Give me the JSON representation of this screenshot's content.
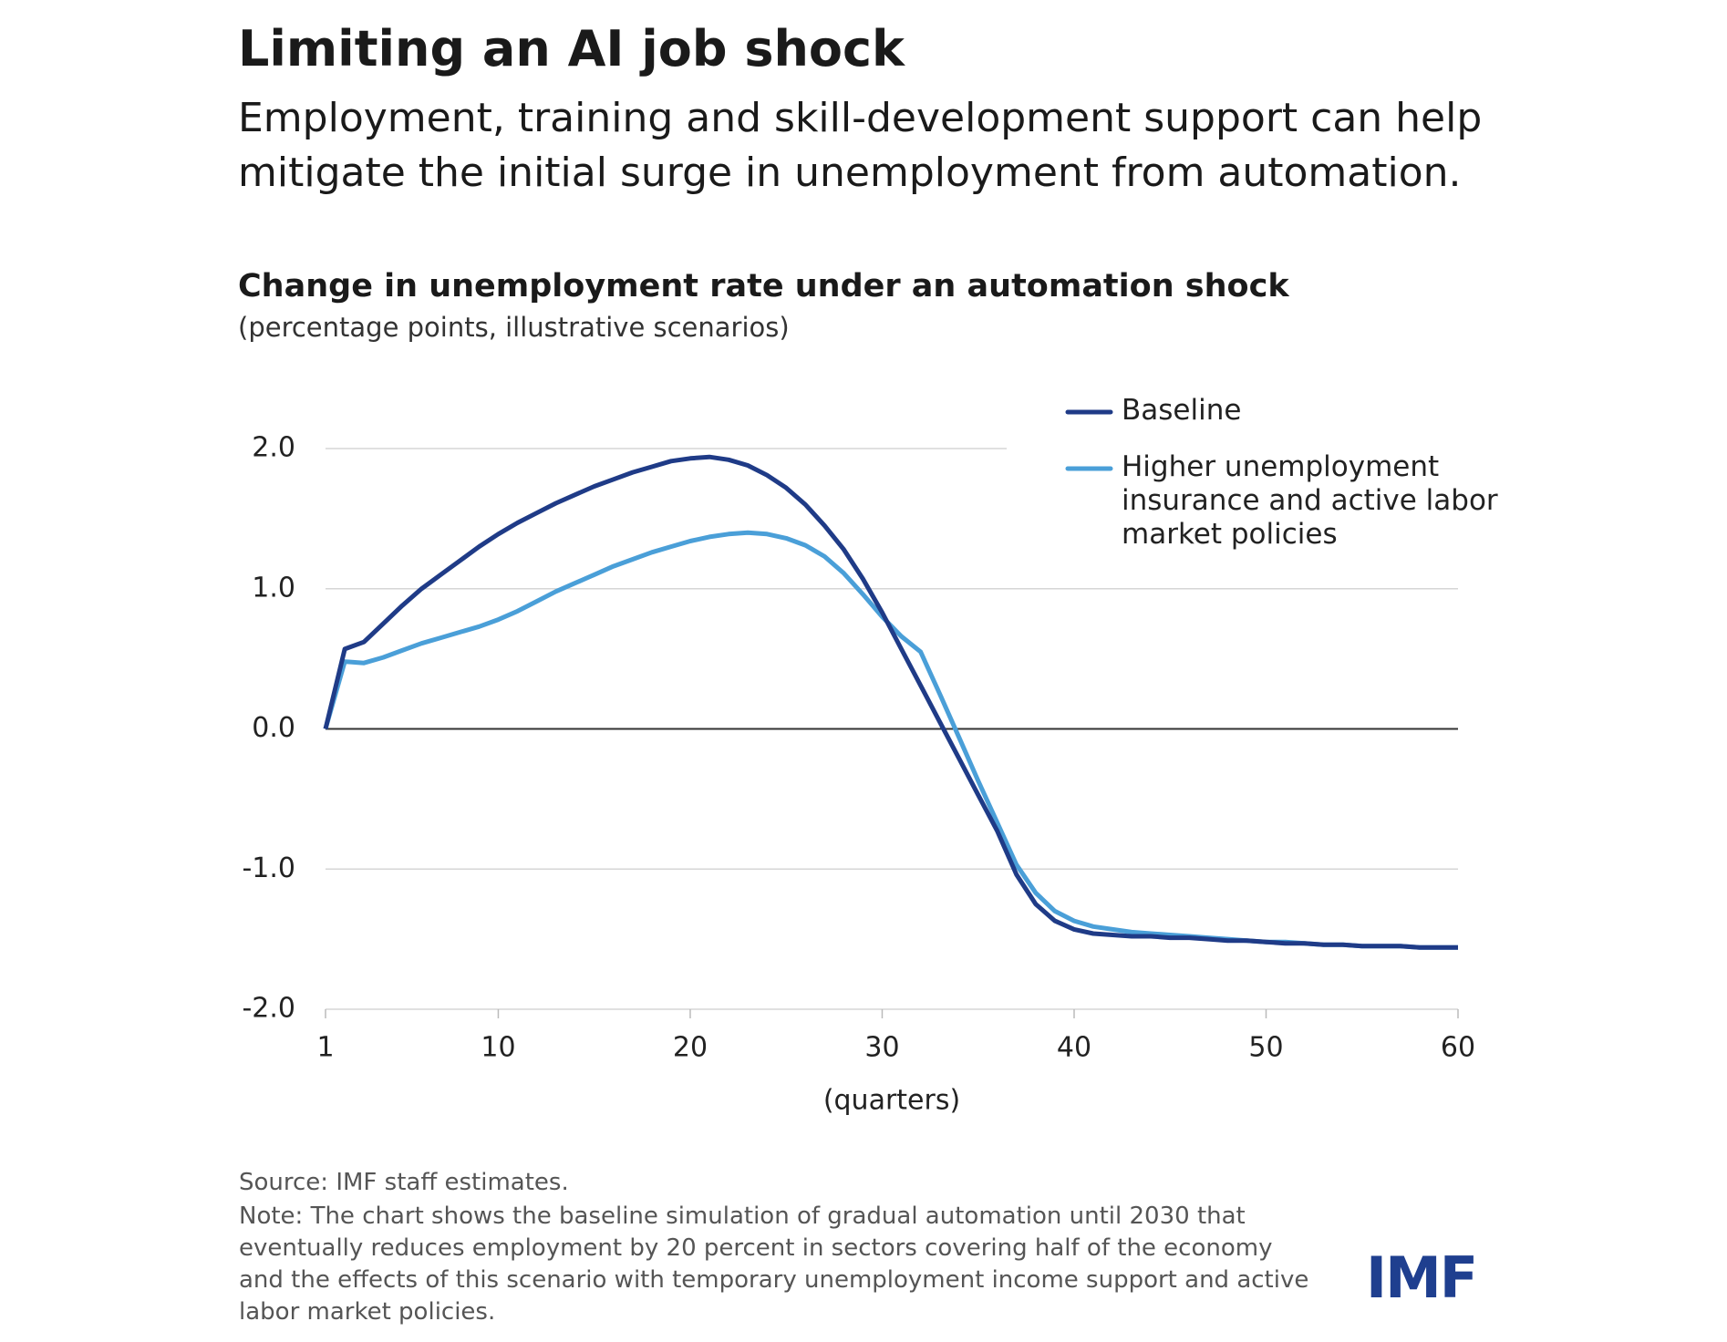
{
  "header": {
    "title": "Limiting an AI job shock",
    "subtitle": "Employment, training and skill-development support can help mitigate the initial surge in unemployment from automation."
  },
  "chart_data": {
    "type": "line",
    "title": "Change in unemployment rate under an automation shock",
    "subtitle": "(percentage points, illustrative scenarios)",
    "x_label": "(quarters)",
    "x": [
      1,
      2,
      3,
      4,
      5,
      6,
      7,
      8,
      9,
      10,
      11,
      12,
      13,
      14,
      15,
      16,
      17,
      18,
      19,
      20,
      21,
      22,
      23,
      24,
      25,
      26,
      27,
      28,
      29,
      30,
      31,
      32,
      33,
      34,
      35,
      36,
      37,
      38,
      39,
      40,
      41,
      42,
      43,
      44,
      45,
      46,
      47,
      48,
      49,
      50,
      51,
      52,
      53,
      54,
      55,
      56,
      57,
      58,
      59,
      60
    ],
    "series": [
      {
        "name": "Baseline",
        "color": "#1f3b87",
        "values": [
          0,
          0.57,
          0.62,
          0.75,
          0.88,
          1.0,
          1.1,
          1.2,
          1.3,
          1.39,
          1.47,
          1.54,
          1.61,
          1.67,
          1.73,
          1.78,
          1.83,
          1.87,
          1.91,
          1.93,
          1.94,
          1.92,
          1.88,
          1.81,
          1.72,
          1.6,
          1.45,
          1.28,
          1.07,
          0.83,
          0.57,
          0.31,
          0.05,
          -0.21,
          -0.47,
          -0.73,
          -1.04,
          -1.25,
          -1.37,
          -1.43,
          -1.46,
          -1.47,
          -1.48,
          -1.48,
          -1.49,
          -1.49,
          -1.5,
          -1.51,
          -1.51,
          -1.52,
          -1.53,
          -1.53,
          -1.54,
          -1.54,
          -1.55,
          -1.55,
          -1.55,
          -1.56,
          -1.56,
          -1.56
        ]
      },
      {
        "name": "Higher unemployment insurance and active labor market policies",
        "color": "#4a9fd8",
        "values": [
          0,
          0.48,
          0.47,
          0.51,
          0.56,
          0.61,
          0.65,
          0.69,
          0.73,
          0.78,
          0.84,
          0.91,
          0.98,
          1.04,
          1.1,
          1.16,
          1.21,
          1.26,
          1.3,
          1.34,
          1.37,
          1.39,
          1.4,
          1.39,
          1.36,
          1.31,
          1.23,
          1.11,
          0.96,
          0.8,
          0.66,
          0.55,
          0.25,
          -0.06,
          -0.37,
          -0.67,
          -0.97,
          -1.17,
          -1.3,
          -1.37,
          -1.41,
          -1.43,
          -1.45,
          -1.46,
          -1.47,
          -1.48,
          -1.49,
          -1.5,
          -1.51,
          -1.52,
          -1.52,
          -1.53,
          -1.54,
          -1.54,
          -1.55,
          -1.55,
          -1.55,
          -1.56,
          -1.56,
          -1.56
        ]
      }
    ],
    "xlim": [
      1,
      60
    ],
    "xticks": [
      1,
      10,
      20,
      30,
      40,
      50,
      60
    ],
    "ylim": [
      -2,
      2
    ],
    "yticks": [
      {
        "value": -2,
        "label": "-2.0"
      },
      {
        "value": -1,
        "label": "-1.0"
      },
      {
        "value": 0,
        "label": "0.0"
      },
      {
        "value": 1,
        "label": "1.0"
      },
      {
        "value": 2,
        "label": "2.0"
      }
    ],
    "grid": true,
    "legend": "top-right"
  },
  "footer": {
    "source": "Source: IMF staff estimates.",
    "note": "Note: The chart shows the baseline simulation of gradual automation until 2030 that eventually reduces employment by 20 percent in sectors covering half of the economy and the effects of this scenario with temporary unemployment income support and active labor market policies.",
    "logo": "IMF"
  }
}
